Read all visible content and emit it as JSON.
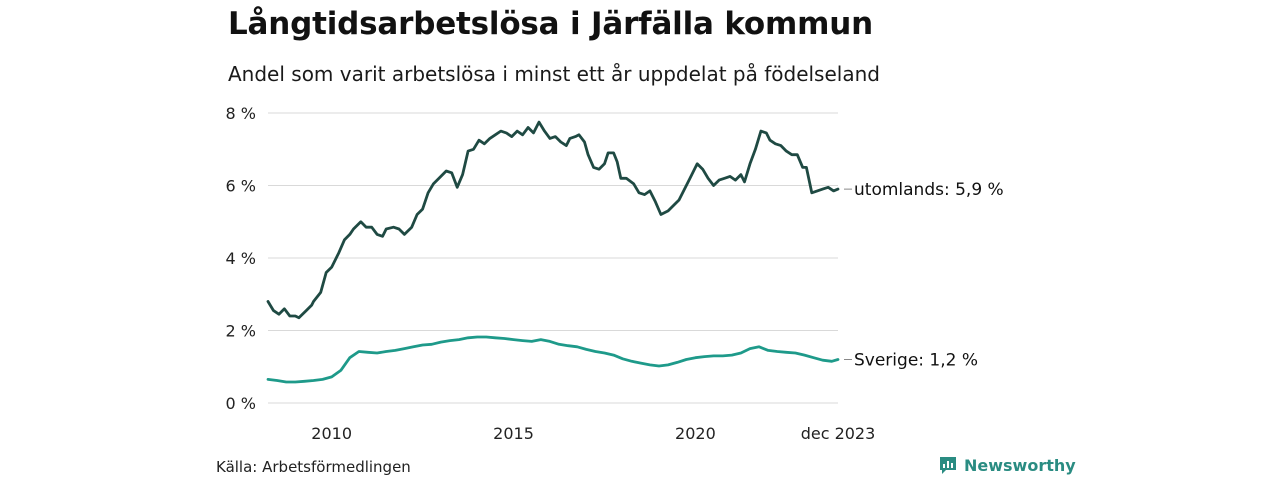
{
  "header": {
    "title": "Långtidsarbetslösa i Järfälla kommun",
    "subtitle": "Andel som varit arbetslösa i minst ett år uppdelat på födelseland"
  },
  "footer": {
    "source": "Källa: Arbetsförmedlingen",
    "brand": "Newsworthy",
    "brand_icon": "newsworthy-logo-icon",
    "brand_color": "#2a8c82"
  },
  "chart_data": {
    "type": "line",
    "title": "Långtidsarbetslösa i Järfälla kommun",
    "subtitle": "Andel som varit arbetslösa i minst ett år uppdelat på födelseland",
    "xlabel": "",
    "ylabel": "",
    "x_start": 2008.25,
    "x_end": 2023.92,
    "ylim": [
      0,
      8
    ],
    "y_ticks": [
      0,
      2,
      4,
      6,
      8
    ],
    "y_tick_labels": [
      "0 %",
      "2 %",
      "4 %",
      "6 %",
      "8 %"
    ],
    "x_ticks": [
      2010,
      2015,
      2020,
      2023.92
    ],
    "x_tick_labels": [
      "2010",
      "2015",
      "2020",
      "dec 2023"
    ],
    "grid": true,
    "series": [
      {
        "name": "utomlands",
        "end_label": "utomlands: 5,9 %",
        "color": "#1f4a43",
        "x": [
          2008.25,
          2008.4,
          2008.55,
          2008.7,
          2008.85,
          2009.0,
          2009.1,
          2009.3,
          2009.45,
          2009.5,
          2009.7,
          2009.85,
          2010.0,
          2010.2,
          2010.35,
          2010.5,
          2010.6,
          2010.8,
          2010.95,
          2011.1,
          2011.25,
          2011.4,
          2011.5,
          2011.7,
          2011.85,
          2012.0,
          2012.2,
          2012.35,
          2012.5,
          2012.65,
          2012.8,
          2012.95,
          2013.15,
          2013.3,
          2013.45,
          2013.6,
          2013.75,
          2013.9,
          2014.05,
          2014.2,
          2014.35,
          2014.5,
          2014.65,
          2014.8,
          2014.95,
          2015.1,
          2015.25,
          2015.4,
          2015.55,
          2015.7,
          2015.85,
          2016.0,
          2016.15,
          2016.3,
          2016.45,
          2016.55,
          2016.7,
          2016.8,
          2016.95,
          2017.05,
          2017.2,
          2017.35,
          2017.5,
          2017.6,
          2017.75,
          2017.85,
          2017.95,
          2018.1,
          2018.3,
          2018.45,
          2018.6,
          2018.75,
          2018.9,
          2019.05,
          2019.25,
          2019.4,
          2019.55,
          2019.7,
          2019.85,
          2020.05,
          2020.2,
          2020.35,
          2020.5,
          2020.65,
          2020.8,
          2020.95,
          2021.1,
          2021.25,
          2021.35,
          2021.5,
          2021.65,
          2021.8,
          2021.95,
          2022.05,
          2022.2,
          2022.35,
          2022.5,
          2022.65,
          2022.8,
          2022.95,
          2023.05,
          2023.2,
          2023.35,
          2023.5,
          2023.65,
          2023.8,
          2023.92
        ],
        "values": [
          2.8,
          2.55,
          2.45,
          2.6,
          2.4,
          2.4,
          2.35,
          2.55,
          2.7,
          2.8,
          3.05,
          3.6,
          3.75,
          4.15,
          4.5,
          4.65,
          4.8,
          5.0,
          4.85,
          4.85,
          4.65,
          4.6,
          4.8,
          4.85,
          4.8,
          4.65,
          4.85,
          5.2,
          5.35,
          5.8,
          6.05,
          6.2,
          6.4,
          6.35,
          5.95,
          6.3,
          6.95,
          7.0,
          7.25,
          7.15,
          7.3,
          7.4,
          7.5,
          7.45,
          7.35,
          7.5,
          7.4,
          7.6,
          7.45,
          7.75,
          7.5,
          7.3,
          7.35,
          7.2,
          7.1,
          7.3,
          7.35,
          7.4,
          7.2,
          6.85,
          6.5,
          6.45,
          6.6,
          6.9,
          6.9,
          6.65,
          6.2,
          6.2,
          6.05,
          5.8,
          5.75,
          5.85,
          5.55,
          5.2,
          5.3,
          5.45,
          5.6,
          5.9,
          6.2,
          6.6,
          6.45,
          6.2,
          6.0,
          6.15,
          6.2,
          6.25,
          6.15,
          6.3,
          6.1,
          6.6,
          7.0,
          7.5,
          7.45,
          7.25,
          7.15,
          7.1,
          6.95,
          6.85,
          6.85,
          6.5,
          6.5,
          5.8,
          5.85,
          5.9,
          5.95,
          5.85,
          5.9
        ]
      },
      {
        "name": "Sverige",
        "end_label": "Sverige: 1,2 %",
        "color": "#1e9a8a",
        "x": [
          2008.25,
          2008.5,
          2008.75,
          2009.0,
          2009.25,
          2009.5,
          2009.75,
          2010.0,
          2010.25,
          2010.5,
          2010.75,
          2011.0,
          2011.25,
          2011.5,
          2011.75,
          2012.0,
          2012.25,
          2012.5,
          2012.75,
          2013.0,
          2013.25,
          2013.5,
          2013.75,
          2014.0,
          2014.25,
          2014.5,
          2014.75,
          2015.0,
          2015.25,
          2015.5,
          2015.75,
          2016.0,
          2016.25,
          2016.5,
          2016.75,
          2017.0,
          2017.25,
          2017.5,
          2017.75,
          2018.0,
          2018.25,
          2018.5,
          2018.75,
          2019.0,
          2019.25,
          2019.5,
          2019.75,
          2020.0,
          2020.25,
          2020.5,
          2020.75,
          2021.0,
          2021.25,
          2021.5,
          2021.75,
          2022.0,
          2022.25,
          2022.5,
          2022.75,
          2023.0,
          2023.25,
          2023.5,
          2023.75,
          2023.92
        ],
        "values": [
          0.65,
          0.62,
          0.58,
          0.58,
          0.6,
          0.62,
          0.65,
          0.72,
          0.9,
          1.25,
          1.42,
          1.4,
          1.38,
          1.42,
          1.45,
          1.5,
          1.55,
          1.6,
          1.62,
          1.68,
          1.72,
          1.75,
          1.8,
          1.82,
          1.82,
          1.8,
          1.78,
          1.75,
          1.72,
          1.7,
          1.75,
          1.7,
          1.62,
          1.58,
          1.55,
          1.48,
          1.42,
          1.38,
          1.32,
          1.22,
          1.15,
          1.1,
          1.05,
          1.02,
          1.05,
          1.12,
          1.2,
          1.25,
          1.28,
          1.3,
          1.3,
          1.32,
          1.38,
          1.5,
          1.55,
          1.45,
          1.42,
          1.4,
          1.38,
          1.32,
          1.25,
          1.18,
          1.15,
          1.2
        ]
      }
    ]
  }
}
